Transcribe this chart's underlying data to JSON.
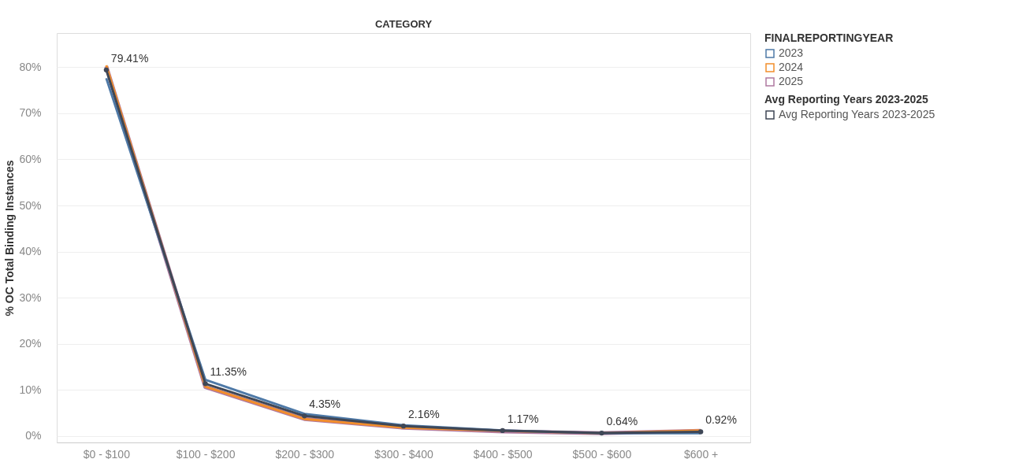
{
  "chart_data": {
    "type": "line",
    "xlabel": "CATEGORY",
    "ylabel": "% OC Total Binding Instances",
    "legend_title": [
      "FINALREPORTINGYEAR",
      "Avg Reporting Years 2023-2025"
    ],
    "categories": [
      "$0 - $100",
      "$100 - $200",
      "$200 - $300",
      "$300 - $400",
      "$400 - $500",
      "$500 - $600",
      "$600 +"
    ],
    "series": [
      {
        "name": "2023",
        "color": "#4e79a7",
        "values": [
          77.6,
          12.2,
          4.8,
          2.3,
          1.2,
          0.6,
          0.6
        ]
      },
      {
        "name": "2024",
        "color": "#f28e2b",
        "values": [
          80.4,
          10.7,
          3.7,
          1.8,
          1.1,
          0.6,
          1.2
        ]
      },
      {
        "name": "2025",
        "color": "#b07aa1",
        "values": [
          80.2,
          10.6,
          3.7,
          1.8,
          1.0,
          0.6,
          1.1
        ]
      },
      {
        "name": "Avg Reporting Years 2023-2025",
        "color": "#3f4756",
        "marker": "circle",
        "values": [
          79.41,
          11.35,
          4.35,
          2.16,
          1.17,
          0.64,
          0.92
        ],
        "value_labels": [
          "79.41%",
          "11.35%",
          "4.35%",
          "2.16%",
          "1.17%",
          "0.64%",
          "0.92%"
        ]
      }
    ],
    "ylim": [
      -1.4,
      87.4
    ],
    "yticks": [
      {
        "value": 0,
        "label": "0%"
      },
      {
        "value": 10,
        "label": "10%"
      },
      {
        "value": 20,
        "label": "20%"
      },
      {
        "value": 30,
        "label": "30%"
      },
      {
        "value": 40,
        "label": "40%"
      },
      {
        "value": 50,
        "label": "50%"
      },
      {
        "value": 60,
        "label": "60%"
      },
      {
        "value": 70,
        "label": "70%"
      },
      {
        "value": 80,
        "label": "80%"
      }
    ],
    "grid": "y",
    "legend": "right",
    "line_style": "solid"
  }
}
